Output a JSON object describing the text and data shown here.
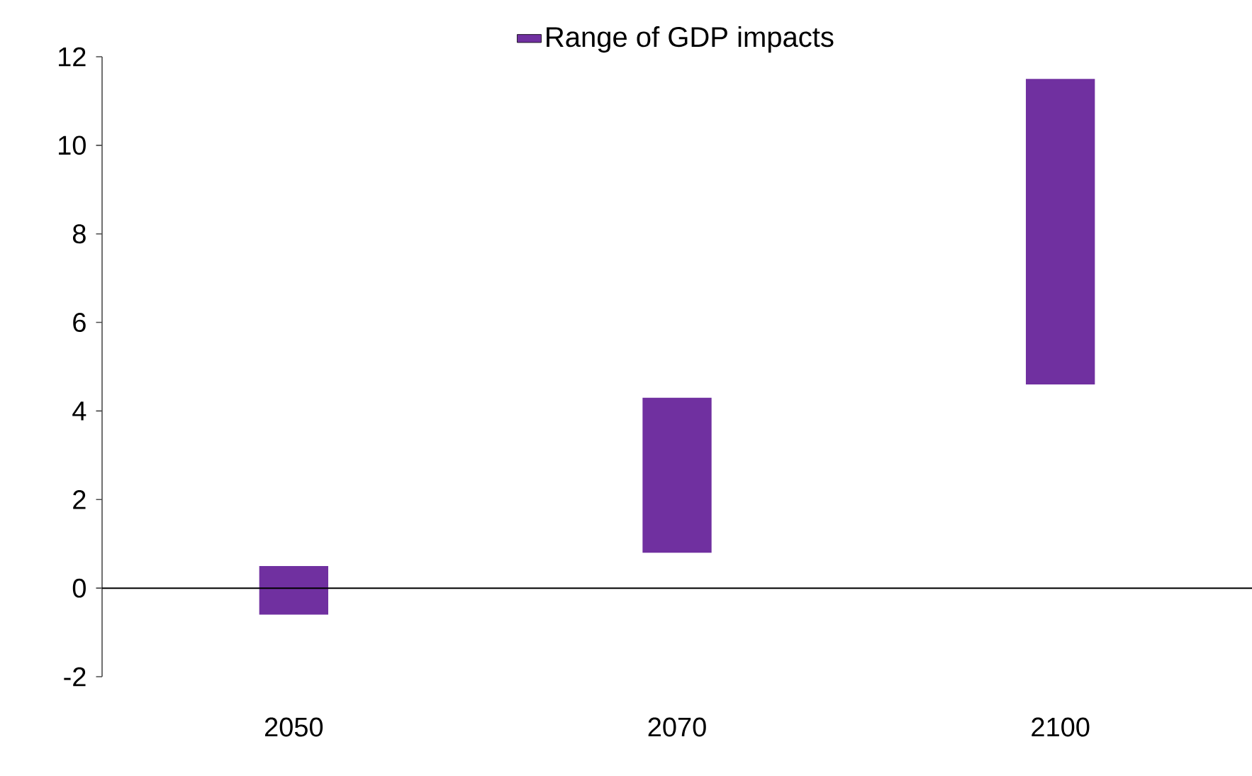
{
  "chart_data": {
    "type": "bar",
    "categories": [
      "2050",
      "2070",
      "2100"
    ],
    "series": [
      {
        "name": "Range of GDP impacts",
        "color": "#7030a0",
        "values": [
          1.1,
          3.5,
          6.9
        ],
        "base": [
          -0.6,
          0.8,
          4.6
        ]
      }
    ],
    "ylim": [
      -2,
      12
    ],
    "yticks": [
      -2,
      0,
      2,
      4,
      6,
      8,
      10,
      12
    ],
    "ref_lines": [
      {
        "axis": "y",
        "value": 0
      }
    ],
    "legend": "top",
    "grid": false
  }
}
